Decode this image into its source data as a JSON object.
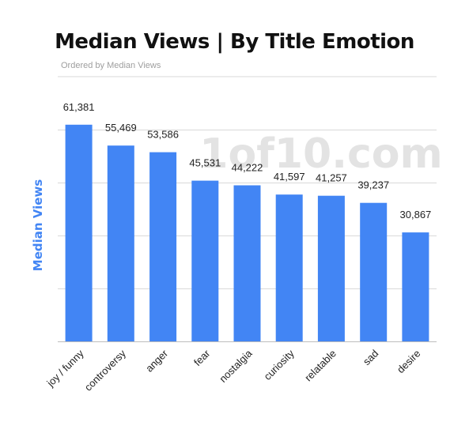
{
  "chart_data": {
    "type": "bar",
    "title": "Median Views | By Title Emotion",
    "subtitle": "Ordered by Median Views",
    "watermark": "1of10.com",
    "xlabel": "",
    "ylabel": "Median Views",
    "categories": [
      "joy / funny",
      "controversy",
      "anger",
      "fear",
      "nostalgia",
      "curiosity",
      "relatable",
      "sad",
      "desire"
    ],
    "values": [
      61381,
      55469,
      53586,
      45531,
      44222,
      41597,
      41257,
      39237,
      30867
    ],
    "value_labels": [
      "61,381",
      "55,469",
      "53,586",
      "45,531",
      "44,222",
      "41,597",
      "41,257",
      "39,237",
      "30,867"
    ],
    "ylim": [
      0,
      75000
    ],
    "gridline_step": 15000,
    "grid": true,
    "legend": "none",
    "colors": {
      "bar": "#4285f4",
      "ylabel": "#4285f4",
      "grid": "#d9d9d9",
      "watermark": "#e3e3e3"
    }
  }
}
